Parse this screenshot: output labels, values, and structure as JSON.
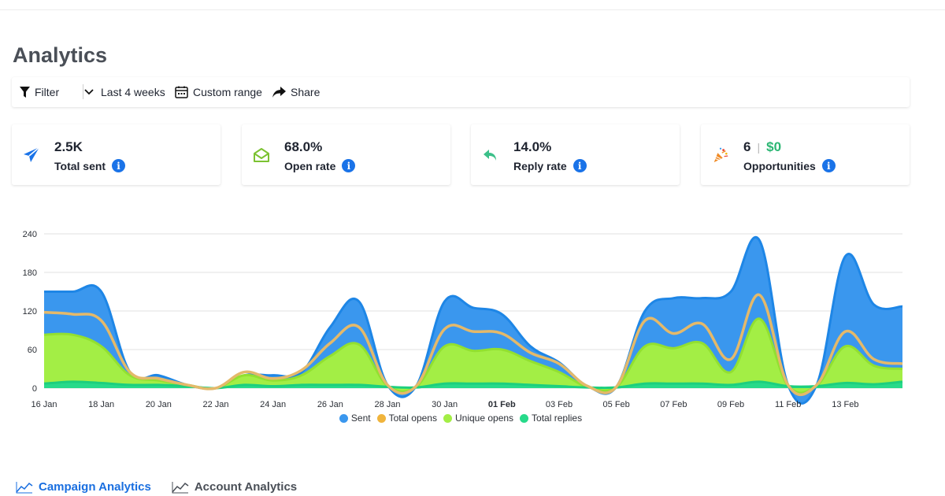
{
  "page": {
    "title": "Analytics"
  },
  "toolbar": {
    "filter_label": "Filter",
    "range_label": "Last 4 weeks",
    "custom_label": "Custom range",
    "share_label": "Share"
  },
  "stats": {
    "sent": {
      "value": "2.5K",
      "label": "Total sent",
      "icon": "paper-plane-icon"
    },
    "open": {
      "value": "68.0%",
      "label": "Open rate",
      "icon": "open-envelope-icon"
    },
    "reply": {
      "value": "14.0%",
      "label": "Reply rate",
      "icon": "reply-arrow-icon"
    },
    "opportunities": {
      "count": "6",
      "amount": "$0",
      "label": "Opportunities",
      "icon": "party-popper-icon"
    }
  },
  "colors": {
    "sent": "#3a97ee",
    "total_opens": "#f0b43c",
    "unique_opens": "#a3ee45",
    "total_replies": "#27da8a",
    "accent": "#1a73e8"
  },
  "chart_data": {
    "type": "area",
    "x": [
      "16 Jan",
      "17 Jan",
      "18 Jan",
      "19 Jan",
      "20 Jan",
      "21 Jan",
      "22 Jan",
      "23 Jan",
      "24 Jan",
      "25 Jan",
      "26 Jan",
      "27 Jan",
      "28 Jan",
      "29 Jan",
      "30 Jan",
      "31 Jan",
      "01 Feb",
      "02 Feb",
      "03 Feb",
      "04 Feb",
      "05 Feb",
      "06 Feb",
      "07 Feb",
      "08 Feb",
      "09 Feb",
      "10 Feb",
      "11 Feb",
      "12 Feb",
      "13 Feb",
      "14 Feb",
      "15 Feb"
    ],
    "x_tick_labels": [
      "16 Jan",
      "18 Jan",
      "20 Jan",
      "22 Jan",
      "24 Jan",
      "26 Jan",
      "28 Jan",
      "30 Jan",
      "01 Feb",
      "03 Feb",
      "05 Feb",
      "07 Feb",
      "09 Feb",
      "11 Feb",
      "13 Feb"
    ],
    "bold_tick": "01 Feb",
    "ylim": [
      0,
      240
    ],
    "y_ticks": [
      0,
      60,
      120,
      180,
      240
    ],
    "grid": true,
    "legend_position": "bottom",
    "series": [
      {
        "name": "Sent",
        "values": [
          150,
          150,
          150,
          25,
          20,
          5,
          0,
          20,
          20,
          25,
          95,
          135,
          5,
          3,
          135,
          125,
          115,
          65,
          40,
          3,
          2,
          120,
          140,
          140,
          150,
          230,
          5,
          5,
          205,
          130,
          127
        ]
      },
      {
        "name": "Total opens",
        "values": [
          118,
          115,
          105,
          25,
          15,
          5,
          0,
          25,
          15,
          28,
          70,
          95,
          5,
          3,
          92,
          88,
          85,
          55,
          38,
          3,
          2,
          105,
          85,
          100,
          45,
          145,
          5,
          5,
          88,
          45,
          38
        ]
      },
      {
        "name": "Unique opens",
        "values": [
          83,
          83,
          65,
          20,
          12,
          5,
          0,
          20,
          12,
          20,
          50,
          68,
          4,
          2,
          65,
          58,
          60,
          42,
          25,
          2,
          2,
          65,
          62,
          70,
          25,
          108,
          4,
          4,
          65,
          35,
          30
        ]
      },
      {
        "name": "Total replies",
        "values": [
          7,
          10,
          8,
          5,
          5,
          3,
          0,
          5,
          3,
          5,
          5,
          5,
          2,
          1,
          7,
          7,
          7,
          5,
          3,
          1,
          1,
          7,
          7,
          7,
          5,
          10,
          3,
          3,
          8,
          6,
          10
        ]
      }
    ]
  },
  "tabs": {
    "campaign": "Campaign Analytics",
    "account": "Account Analytics"
  }
}
